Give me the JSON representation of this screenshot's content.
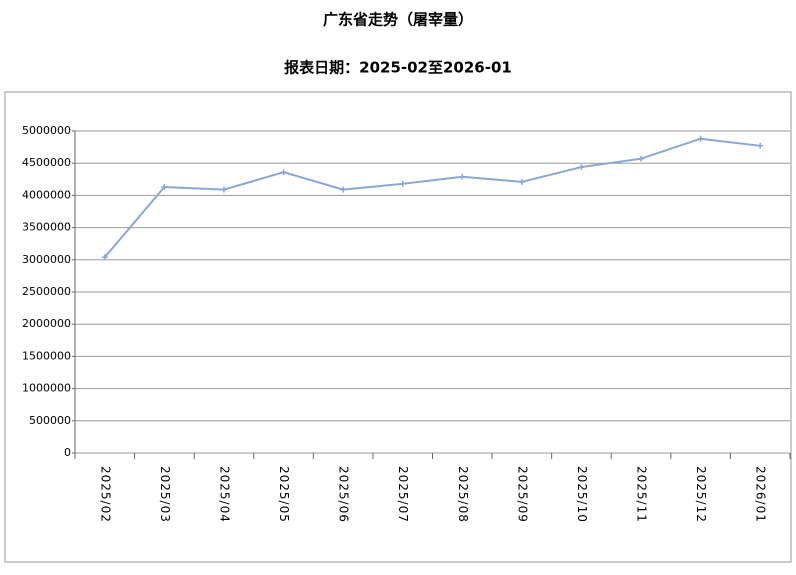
{
  "chart_data": {
    "type": "line",
    "title": "广东省走势（屠宰量）",
    "subtitle": "报表日期：2025-02至2026-01",
    "categories": [
      "2025/02",
      "2025/03",
      "2025/04",
      "2025/05",
      "2025/06",
      "2025/07",
      "2025/08",
      "2025/09",
      "2025/10",
      "2025/11",
      "2025/12",
      "2026/01"
    ],
    "series": [
      {
        "name": "屠宰量",
        "color": "#8aa6d4",
        "values": [
          3040000,
          4130000,
          4090000,
          4360000,
          4090000,
          4180000,
          4290000,
          4210000,
          4440000,
          4570000,
          4880000,
          4770000
        ]
      }
    ],
    "ylim": [
      0,
      5000000
    ],
    "yticks": [
      0,
      500000,
      1000000,
      1500000,
      2000000,
      2500000,
      3000000,
      3500000,
      4000000,
      4500000,
      5000000
    ],
    "grid": true
  }
}
